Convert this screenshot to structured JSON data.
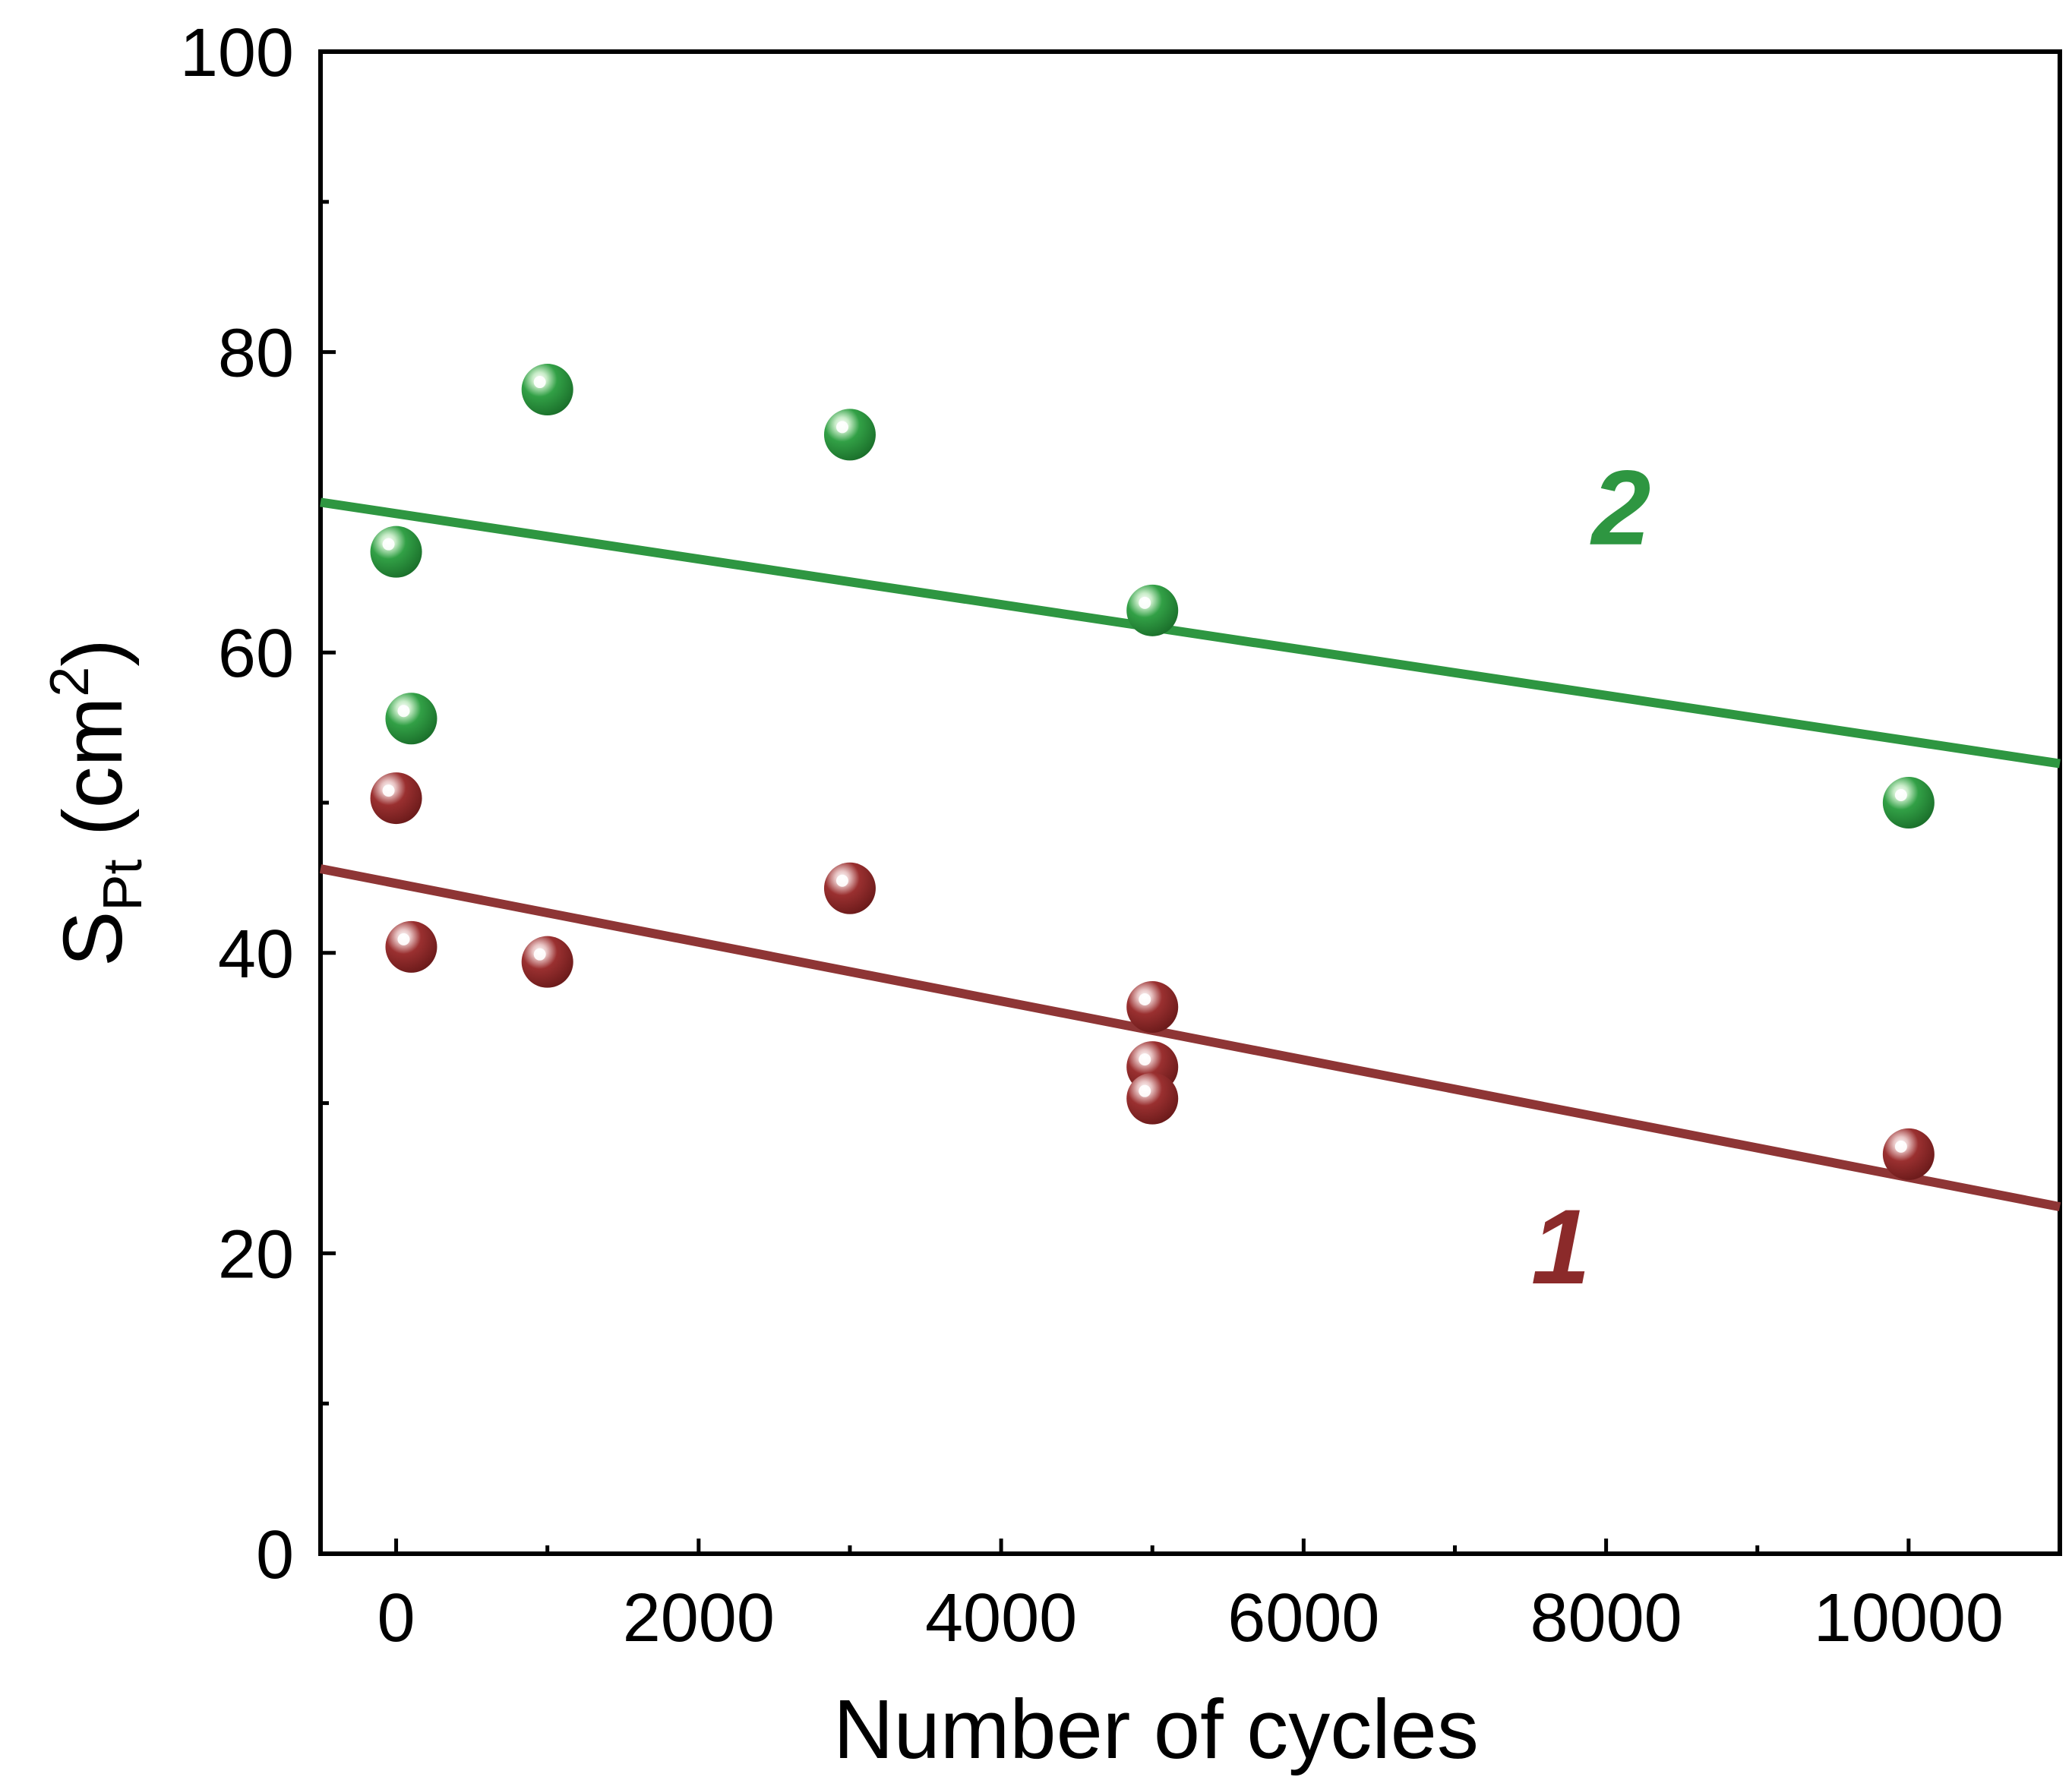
{
  "chart_data": {
    "type": "scatter",
    "xlabel": "Number of cycles",
    "ylabel": {
      "main": "S",
      "sub": "Pt",
      "unit_open": " (cm",
      "sup": "2",
      "unit_close": ")"
    },
    "xlim": [
      -500,
      11000
    ],
    "ylim": [
      0,
      100
    ],
    "x_ticks": [
      0,
      2000,
      4000,
      6000,
      8000,
      10000
    ],
    "x_tick_labels": [
      "0",
      "2000",
      "4000",
      "6000",
      "8000",
      "10000"
    ],
    "x_minor_ticks": [
      1000,
      3000,
      5000,
      7000,
      9000
    ],
    "y_ticks": [
      0,
      20,
      40,
      60,
      80,
      100
    ],
    "y_tick_labels": [
      "0",
      "20",
      "40",
      "60",
      "80",
      "100"
    ],
    "y_minor_ticks": [
      10,
      30,
      50,
      70,
      90
    ],
    "series": [
      {
        "name": "1",
        "label": "1",
        "color": "#8b2a2a",
        "highlight": "#f2dede",
        "line_color": "#8e3535",
        "label_pos": [
          7700,
          18
        ],
        "points": [
          {
            "x": 0,
            "y": 50.3
          },
          {
            "x": 100,
            "y": 40.4
          },
          {
            "x": 1000,
            "y": 39.4
          },
          {
            "x": 3000,
            "y": 44.3
          },
          {
            "x": 5000,
            "y": 36.4
          },
          {
            "x": 5000,
            "y": 32.4
          },
          {
            "x": 5000,
            "y": 30.3
          },
          {
            "x": 10000,
            "y": 26.6
          }
        ],
        "fit": {
          "x": [
            -500,
            11000
          ],
          "y": [
            45.6,
            23.1
          ]
        }
      },
      {
        "name": "2",
        "label": "2",
        "color": "#2e9641",
        "highlight": "#e6f6e6",
        "line_color": "#2e9641",
        "label_pos": [
          8100,
          67.2
        ],
        "points": [
          {
            "x": 0,
            "y": 66.7
          },
          {
            "x": 100,
            "y": 55.6
          },
          {
            "x": 1000,
            "y": 77.5
          },
          {
            "x": 3000,
            "y": 74.5
          },
          {
            "x": 5000,
            "y": 62.8
          },
          {
            "x": 10000,
            "y": 50.0
          }
        ],
        "fit": {
          "x": [
            -500,
            11000
          ],
          "y": [
            70.0,
            52.6
          ]
        }
      }
    ]
  }
}
